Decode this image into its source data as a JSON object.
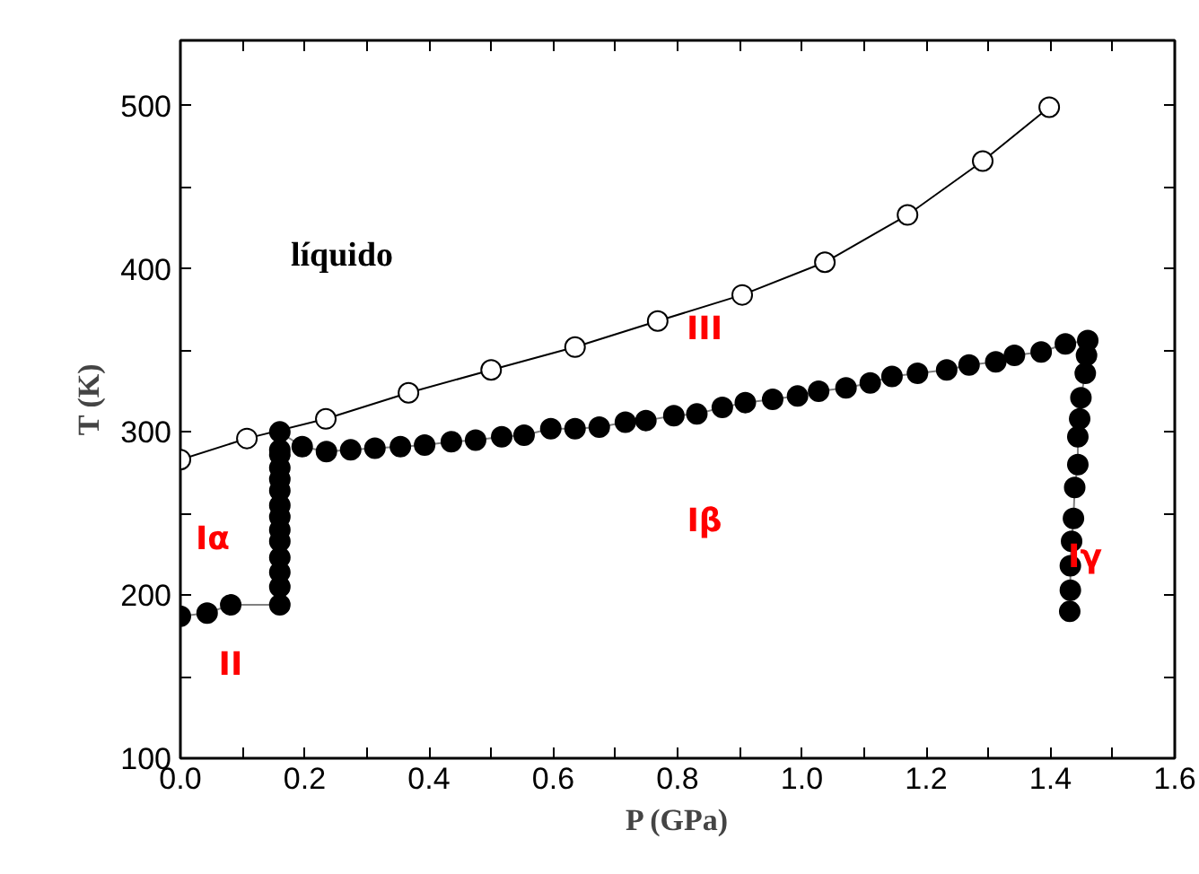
{
  "chart_data": {
    "type": "line",
    "xlabel": "P (GPa)",
    "ylabel": "T (K)",
    "xlim": [
      0,
      1.6
    ],
    "ylim": [
      100,
      540
    ],
    "xticks": [
      {
        "value": 0,
        "label": "0.0"
      },
      {
        "value": 0.1,
        "label": null
      },
      {
        "value": 0.2,
        "label": "0.2"
      },
      {
        "value": 0.3,
        "label": null
      },
      {
        "value": 0.4,
        "label": "0.4"
      },
      {
        "value": 0.5,
        "label": null
      },
      {
        "value": 0.6,
        "label": "0.6"
      },
      {
        "value": 0.7,
        "label": null
      },
      {
        "value": 0.8,
        "label": "0.8"
      },
      {
        "value": 0.9,
        "label": null
      },
      {
        "value": 1.0,
        "label": "1.0"
      },
      {
        "value": 1.1,
        "label": null
      },
      {
        "value": 1.2,
        "label": "1.2"
      },
      {
        "value": 1.3,
        "label": null
      },
      {
        "value": 1.4,
        "label": "1.4"
      },
      {
        "value": 1.5,
        "label": null
      },
      {
        "value": 1.6,
        "label": "1.6"
      }
    ],
    "yticks": [
      100,
      {
        "value": 150,
        "label": null
      },
      200,
      {
        "value": 250,
        "label": null
      },
      300,
      {
        "value": 350,
        "label": null
      },
      400,
      {
        "value": 450,
        "label": null
      },
      500
    ],
    "grid": false,
    "marker": "circle",
    "series": [
      {
        "color": "#000000",
        "x": [
          0,
          0.107,
          0.234,
          0.367,
          0.5,
          0.635,
          0.768,
          0.904,
          1.037,
          1.17,
          1.291,
          1.398
        ],
        "values": [
          283,
          296,
          308,
          324,
          338,
          352,
          368,
          384,
          404,
          433,
          466,
          499
        ]
      },
      {
        "color": "#000000",
        "x": [
          0,
          0.043,
          0.081,
          0.16,
          0.16,
          0.16,
          0.16,
          0.16,
          0.16,
          0.16,
          0.16,
          0.16,
          0.16,
          0.16,
          0.16,
          0.16,
          0.16,
          0.196,
          0.235,
          0.274,
          0.313,
          0.354,
          0.393,
          0.436,
          0.475,
          0.517,
          0.553,
          0.596,
          0.635,
          0.674,
          0.716,
          0.749,
          0.794,
          0.831,
          0.872,
          0.909,
          0.953,
          0.993,
          1.027,
          1.071,
          1.11,
          1.145,
          1.186,
          1.233,
          1.269,
          1.312,
          1.342,
          1.385,
          1.424,
          1.46,
          1.458,
          1.456,
          1.449,
          1.447,
          1.444,
          1.444,
          1.439,
          1.437,
          1.434,
          1.432,
          1.432,
          1.431
        ],
        "values": [
          187,
          189,
          194,
          194,
          205,
          214,
          223,
          233,
          240,
          248,
          255,
          264,
          271,
          278,
          286,
          289,
          300,
          291,
          288,
          289,
          290,
          291,
          292,
          294,
          295,
          297,
          298,
          302,
          302,
          303,
          306,
          307,
          310,
          311,
          315,
          318,
          320,
          322,
          325,
          327,
          330,
          334,
          336,
          338,
          341,
          343,
          347,
          349,
          354,
          356,
          347,
          336,
          321,
          308,
          297,
          280,
          266,
          247,
          233,
          218,
          203,
          190
        ]
      }
    ],
    "annotations": [
      "líquido",
      "III",
      "Iα",
      "Iβ",
      "Iγ",
      "II"
    ]
  }
}
